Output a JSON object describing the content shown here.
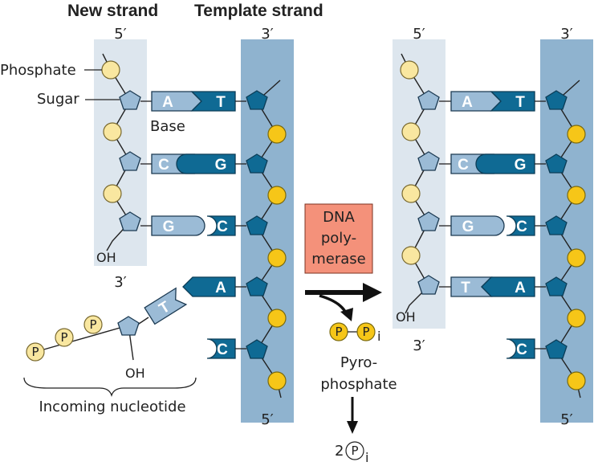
{
  "titles": {
    "new_strand": "New strand",
    "template_strand": "Template strand"
  },
  "ends": {
    "left_new_top": "5′",
    "left_new_bottom": "3′",
    "left_tmpl_top": "3′",
    "left_tmpl_bottom": "5′",
    "right_new_top": "5′",
    "right_new_bottom": "3′",
    "right_tmpl_top": "3′",
    "right_tmpl_bottom": "5′"
  },
  "labels": {
    "phosphate": "Phosphate",
    "sugar": "Sugar",
    "base": "Base",
    "oh_left": "OH",
    "oh_incoming": "OH",
    "oh_right": "OH",
    "incoming": "Incoming nucleotide",
    "pyrophosphate_line1": "Pyro-",
    "pyrophosphate_line2": "phosphate",
    "p_symbol": "P",
    "pi_symbol": "P",
    "pi_subscript": "i",
    "two": "2"
  },
  "enzyme": {
    "line1": "DNA",
    "line2": "poly-",
    "line3": "merase"
  },
  "left_pairs": [
    {
      "new_base": "A",
      "template_base": "T"
    },
    {
      "new_base": "C",
      "template_base": "G"
    },
    {
      "new_base": "G",
      "template_base": "C"
    }
  ],
  "left_template_unpaired": [
    "A",
    "C"
  ],
  "incoming_base": "T",
  "right_pairs": [
    {
      "new_base": "A",
      "template_base": "T"
    },
    {
      "new_base": "C",
      "template_base": "G"
    },
    {
      "new_base": "G",
      "template_base": "C"
    },
    {
      "new_base": "T",
      "template_base": "A"
    }
  ],
  "right_template_unpaired": [
    "C"
  ],
  "colors": {
    "light_strand_bg": "#dde6ee",
    "template_bg": "#8fb3cf",
    "enzyme_box": "#f4917a"
  }
}
